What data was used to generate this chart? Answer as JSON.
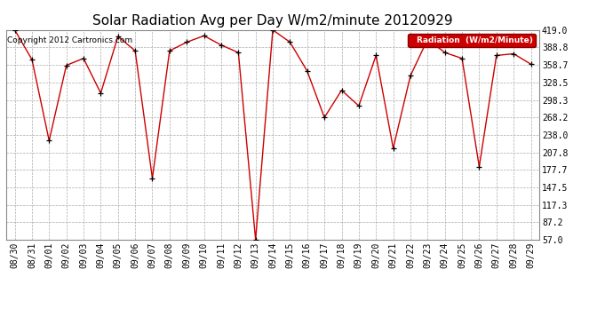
{
  "title": "Solar Radiation Avg per Day W/m2/minute 20120929",
  "copyright": "Copyright 2012 Cartronics.com",
  "legend_label": "Radiation  (W/m2/Minute)",
  "x_labels": [
    "08/30",
    "08/31",
    "09/01",
    "09/02",
    "09/03",
    "09/04",
    "09/05",
    "09/06",
    "09/07",
    "09/08",
    "09/09",
    "09/10",
    "09/11",
    "09/12",
    "09/13",
    "09/14",
    "09/15",
    "09/16",
    "09/17",
    "09/18",
    "09/19",
    "09/20",
    "09/21",
    "09/22",
    "09/23",
    "09/24",
    "09/25",
    "09/26",
    "09/27",
    "09/28",
    "09/29"
  ],
  "y_values": [
    419.0,
    368.0,
    228.0,
    358.0,
    370.0,
    310.0,
    408.0,
    383.0,
    163.0,
    383.0,
    398.0,
    409.0,
    393.0,
    380.0,
    57.0,
    419.0,
    398.0,
    348.0,
    268.0,
    315.0,
    288.0,
    375.0,
    215.0,
    340.0,
    403.0,
    380.0,
    370.0,
    183.0,
    375.0,
    378.0,
    360.0
  ],
  "y_min": 57.0,
  "y_max": 419.0,
  "y_ticks": [
    57.0,
    87.2,
    117.3,
    147.5,
    177.7,
    207.8,
    238.0,
    268.2,
    298.3,
    328.5,
    358.7,
    388.8,
    419.0
  ],
  "line_color": "#cc0000",
  "marker_color": "#000000",
  "bg_color": "#ffffff",
  "grid_color": "#aaaaaa",
  "legend_bg": "#cc0000",
  "legend_text_color": "#ffffff",
  "title_fontsize": 11,
  "tick_fontsize": 7,
  "copyright_fontsize": 6.5
}
